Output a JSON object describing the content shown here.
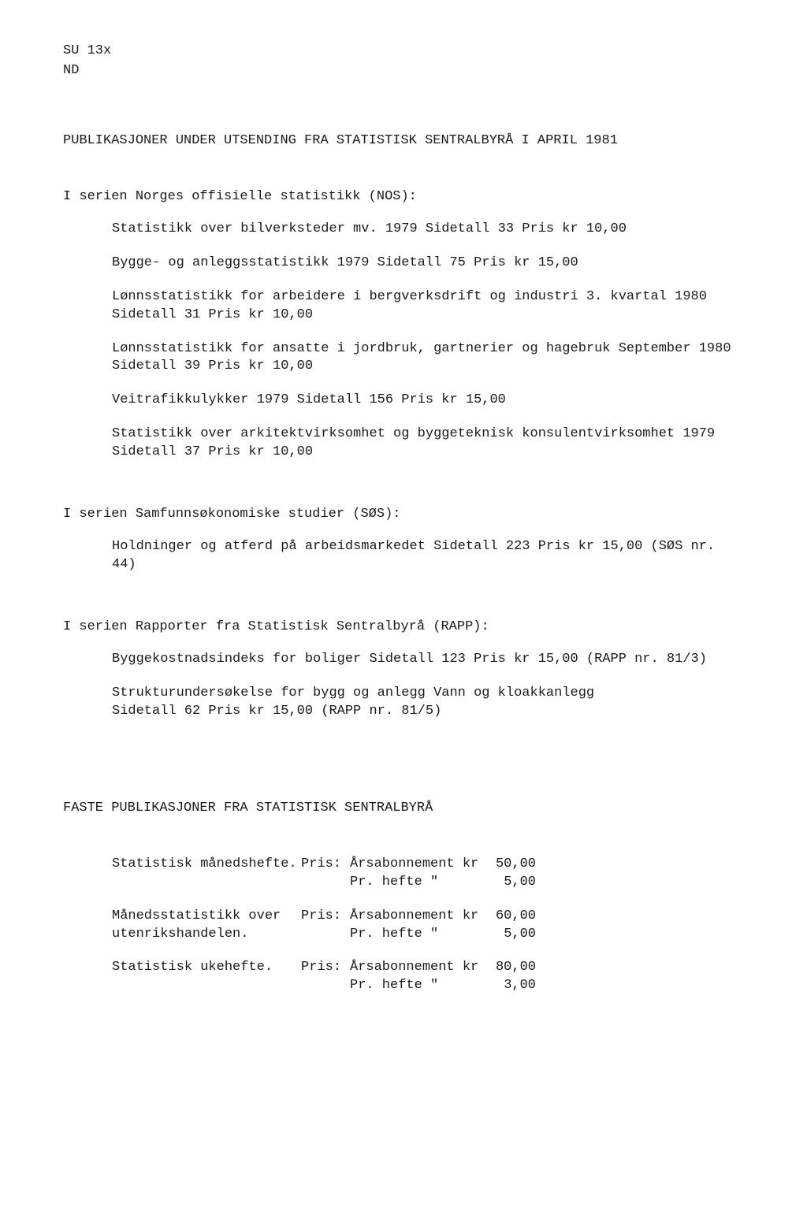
{
  "header": {
    "line1": "SU 13x",
    "line2": "ND"
  },
  "main_title": "PUBLIKASJONER UNDER UTSENDING FRA STATISTISK SENTRALBYRÅ I APRIL 1981",
  "sections": [
    {
      "title": "I serien Norges offisielle statistikk (NOS):",
      "entries": [
        "Statistikk over bilverksteder mv. 1979  Sidetall 33  Pris kr 10,00",
        "Bygge- og anleggsstatistikk 1979  Sidetall 75  Pris kr 15,00",
        "Lønnsstatistikk for arbeidere i bergverksdrift og industri 3. kvartal 1980\nSidetall 31  Pris kr 10,00",
        "Lønnsstatistikk for ansatte i jordbruk, gartnerier og hagebruk  September 1980\nSidetall 39  Pris kr 10,00",
        "Veitrafikkulykker 1979  Sidetall 156  Pris kr 15,00",
        "Statistikk over arkitektvirksomhet og byggeteknisk konsulentvirksomhet 1979\nSidetall 37  Pris kr 10,00"
      ]
    },
    {
      "title": "I serien Samfunnsøkonomiske studier (SØS):",
      "entries": [
        "Holdninger og atferd på arbeidsmarkedet  Sidetall 223  Pris kr 15,00 (SØS nr. 44)"
      ]
    },
    {
      "title": "I serien Rapporter fra Statistisk Sentralbyrå (RAPP):",
      "entries": [
        "Byggekostnadsindeks for boliger  Sidetall 123  Pris kr 15,00 (RAPP nr. 81/3)",
        "Strukturundersøkelse for bygg og anlegg  Vann og kloakkanlegg\nSidetall 62  Pris kr 15,00 (RAPP nr. 81/5)"
      ]
    }
  ],
  "fixed_title": "FASTE PUBLIKASJONER FRA STATISTISK SENTRALBYRÅ",
  "pris_label": "Pris:",
  "sub_label": "Årsabonnement kr",
  "per_label": "Pr. hefte    \"",
  "fixed_pubs": [
    {
      "name": "Statistisk månedshefte.",
      "sub": "50,00",
      "per": "5,00"
    },
    {
      "name": "Månedsstatistikk over\nutenrikshandelen.",
      "sub": "60,00",
      "per": "5,00"
    },
    {
      "name": "Statistisk ukehefte.",
      "sub": "80,00",
      "per": "3,00"
    }
  ]
}
